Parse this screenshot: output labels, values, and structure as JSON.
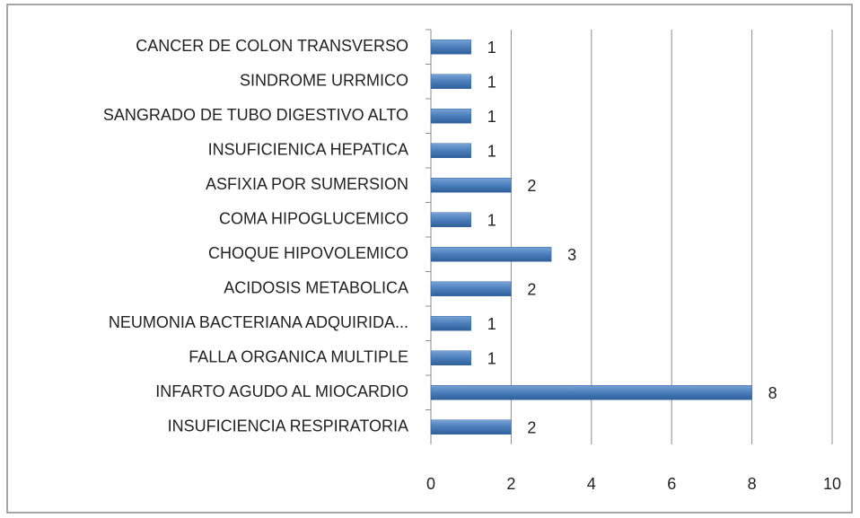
{
  "chart_data": {
    "type": "bar",
    "orientation": "horizontal",
    "categories": [
      "CANCER DE COLON TRANSVERSO",
      "SINDROME URRMICO",
      "SANGRADO DE TUBO DIGESTIVO ALTO",
      "INSUFICIENICA HEPATICA",
      "ASFIXIA POR SUMERSION",
      "COMA HIPOGLUCEMICO",
      "CHOQUE HIPOVOLEMICO",
      "ACIDOSIS METABOLICA",
      "NEUMONIA BACTERIANA ADQUIRIDA...",
      "FALLA ORGANICA MULTIPLE",
      "INFARTO AGUDO AL MIOCARDIO",
      "INSUFICIENCIA RESPIRATORIA"
    ],
    "values": [
      1,
      1,
      1,
      1,
      2,
      1,
      3,
      2,
      1,
      1,
      8,
      2
    ],
    "color": "#4a7ebb",
    "xlim": [
      0,
      10
    ],
    "xticks": [
      0,
      2,
      4,
      6,
      8,
      10
    ],
    "grid": true
  }
}
